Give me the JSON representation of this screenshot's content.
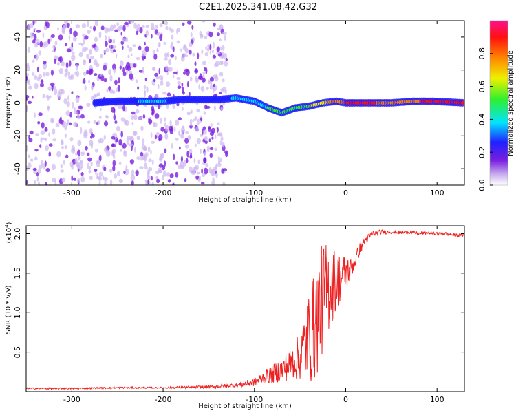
{
  "title": "C2E1.2025.341.08.42.G32",
  "chart_data": [
    {
      "type": "heatmap",
      "xlabel": "Height of straight line (km)",
      "ylabel": "Frequency (Hz)",
      "xlim": [
        -350,
        130
      ],
      "ylim": [
        -50,
        50
      ],
      "xticks": [
        -300,
        -200,
        -100,
        0,
        100
      ],
      "xtick_labels": [
        "-300",
        "-200",
        "-100",
        "0",
        "100"
      ],
      "yticks": [
        -40,
        -20,
        0,
        20,
        40
      ],
      "ytick_labels": [
        "-40",
        "-20",
        "0",
        "20",
        "40"
      ],
      "colorbar": {
        "label": "Normalized spectral amplitude",
        "range": [
          0,
          1
        ],
        "ticks": [
          0.0,
          0.2,
          0.4,
          0.6,
          0.8
        ],
        "tick_labels": [
          "0.0",
          "0.2",
          "0.4",
          "0.6",
          "0.8"
        ],
        "colors": [
          "#ffffff",
          "#cdb8f0",
          "#7a1fe0",
          "#2020ff",
          "#00e5ff",
          "#2ef02e",
          "#f0f000",
          "#ff8000",
          "#ff1010",
          "#ff1090"
        ]
      },
      "signal_band": [
        {
          "x": -275,
          "f": 0,
          "a": 0.3
        },
        {
          "x": -250,
          "f": 1,
          "a": 0.35
        },
        {
          "x": -220,
          "f": 1,
          "a": 0.4
        },
        {
          "x": -200,
          "f": 1,
          "a": 0.4
        },
        {
          "x": -180,
          "f": 2,
          "a": 0.35
        },
        {
          "x": -160,
          "f": 2,
          "a": 0.3
        },
        {
          "x": -140,
          "f": 2,
          "a": 0.35
        },
        {
          "x": -120,
          "f": 3,
          "a": 0.4
        },
        {
          "x": -100,
          "f": 1,
          "a": 0.45
        },
        {
          "x": -85,
          "f": -3,
          "a": 0.5
        },
        {
          "x": -70,
          "f": -6,
          "a": 0.5
        },
        {
          "x": -55,
          "f": -3,
          "a": 0.55
        },
        {
          "x": -40,
          "f": -2,
          "a": 0.6
        },
        {
          "x": -25,
          "f": 0,
          "a": 0.7
        },
        {
          "x": -10,
          "f": 1,
          "a": 0.75
        },
        {
          "x": 0,
          "f": 0,
          "a": 0.85
        },
        {
          "x": 25,
          "f": 0,
          "a": 0.85
        },
        {
          "x": 50,
          "f": 0,
          "a": 0.8
        },
        {
          "x": 75,
          "f": 1,
          "a": 0.8
        },
        {
          "x": 95,
          "f": 1,
          "a": 0.9
        },
        {
          "x": 130,
          "f": 0,
          "a": 0.85
        }
      ]
    },
    {
      "type": "line",
      "xlabel": "Height of straight line (km)",
      "ylabel": "SNR (10 * v/v)",
      "y_multiplier": "(x10",
      "y_multiplier_exp": "4",
      "y_multiplier_close": ")",
      "xlim": [
        -350,
        130
      ],
      "ylim": [
        0,
        2.1
      ],
      "xticks": [
        -300,
        -200,
        -100,
        0,
        100
      ],
      "xtick_labels": [
        "-300",
        "-200",
        "-100",
        "0",
        "100"
      ],
      "yticks": [
        0.5,
        1.0,
        1.5,
        2.0
      ],
      "ytick_labels": [
        "0.5",
        "1.0",
        "1.5",
        "2.0"
      ],
      "color": "#ee2222",
      "series": [
        {
          "name": "SNR",
          "x": [
            -350,
            -300,
            -250,
            -200,
            -150,
            -120,
            -100,
            -90,
            -80,
            -70,
            -60,
            -50,
            -45,
            -40,
            -35,
            -30,
            -25,
            -20,
            -15,
            -10,
            -5,
            0,
            5,
            10,
            15,
            20,
            25,
            30,
            40,
            50,
            60,
            70,
            80,
            90,
            100,
            110,
            120,
            130
          ],
          "y": [
            0.04,
            0.04,
            0.05,
            0.05,
            0.06,
            0.08,
            0.12,
            0.18,
            0.22,
            0.28,
            0.35,
            0.45,
            0.6,
            0.7,
            0.8,
            1.0,
            1.2,
            1.3,
            1.35,
            1.4,
            1.45,
            1.5,
            1.55,
            1.65,
            1.8,
            1.9,
            1.95,
            2.0,
            2.02,
            2.02,
            2.01,
            2.02,
            2.0,
            2.01,
            2.0,
            2.0,
            1.98,
            1.98
          ]
        }
      ],
      "noise": [
        0.01,
        0.01,
        0.01,
        0.01,
        0.02,
        0.03,
        0.05,
        0.08,
        0.12,
        0.15,
        0.22,
        0.3,
        0.45,
        0.6,
        0.7,
        0.75,
        0.7,
        0.6,
        0.5,
        0.4,
        0.3,
        0.25,
        0.15,
        0.1,
        0.08,
        0.06,
        0.05,
        0.04,
        0.03,
        0.02,
        0.02,
        0.02,
        0.02,
        0.02,
        0.02,
        0.02,
        0.02,
        0.02
      ]
    }
  ]
}
